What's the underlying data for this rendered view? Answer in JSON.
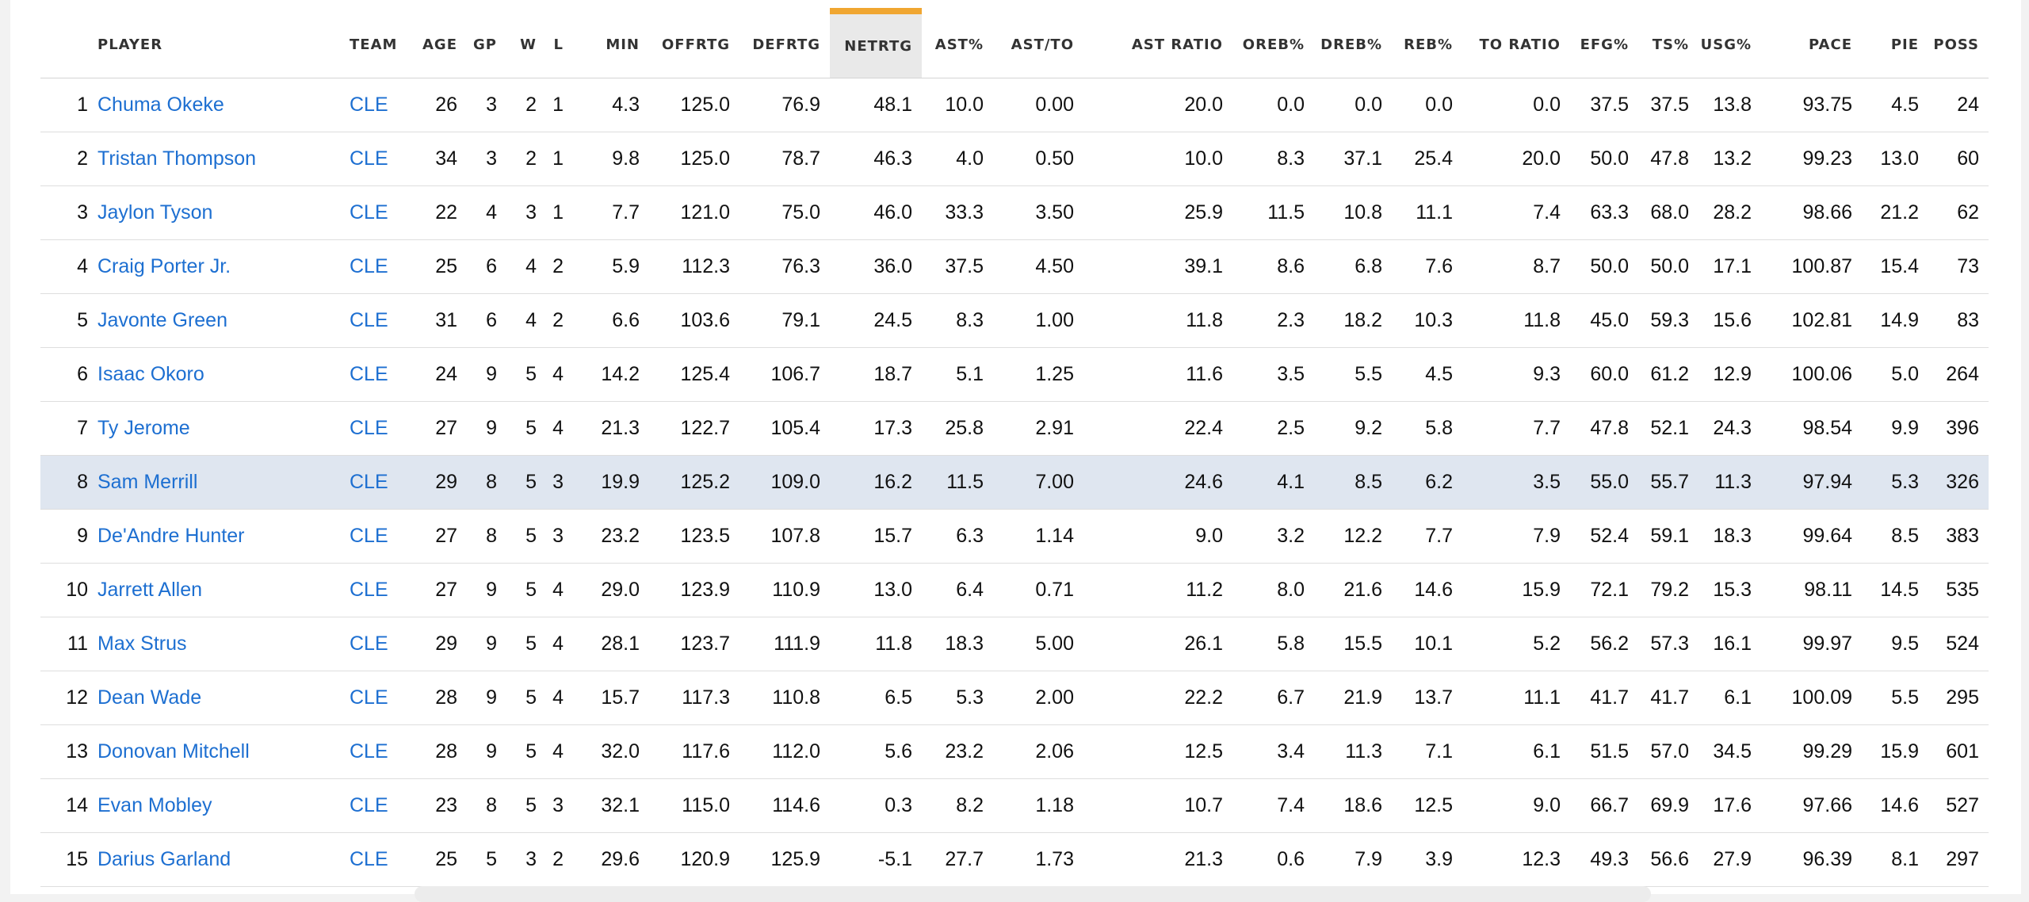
{
  "columns": [
    {
      "key": "rank",
      "label": ""
    },
    {
      "key": "player",
      "label": "PLAYER"
    },
    {
      "key": "team",
      "label": "TEAM"
    },
    {
      "key": "age",
      "label": "AGE"
    },
    {
      "key": "gp",
      "label": "GP"
    },
    {
      "key": "w",
      "label": "W"
    },
    {
      "key": "l",
      "label": "L"
    },
    {
      "key": "min",
      "label": "MIN"
    },
    {
      "key": "offrtg",
      "label": "OFFRTG"
    },
    {
      "key": "defrtg",
      "label": "DEFRTG"
    },
    {
      "key": "netrtg",
      "label": "NETRTG"
    },
    {
      "key": "astpct",
      "label": "AST%"
    },
    {
      "key": "astto",
      "label": "AST/TO"
    },
    {
      "key": "astratio",
      "label": "AST RATIO"
    },
    {
      "key": "orebpct",
      "label": "OREB%"
    },
    {
      "key": "drebpct",
      "label": "DREB%"
    },
    {
      "key": "rebpct",
      "label": "REB%"
    },
    {
      "key": "toratio",
      "label": "TO RATIO"
    },
    {
      "key": "efgpct",
      "label": "EFG%"
    },
    {
      "key": "tspct",
      "label": "TS%"
    },
    {
      "key": "usgpct",
      "label": "USG%"
    },
    {
      "key": "pace",
      "label": "PACE"
    },
    {
      "key": "pie",
      "label": "PIE"
    },
    {
      "key": "poss",
      "label": "POSS"
    }
  ],
  "sorted_column": "netrtg",
  "highlighted_row": 8,
  "colors": {
    "link": "#1d6fd1",
    "sort_indicator": "#f0a631",
    "highlight_row": "#dfe6f0"
  },
  "rows": [
    [
      "1",
      "Chuma Okeke",
      "CLE",
      "26",
      "3",
      "2",
      "1",
      "4.3",
      "125.0",
      "76.9",
      "48.1",
      "10.0",
      "0.00",
      "20.0",
      "0.0",
      "0.0",
      "0.0",
      "0.0",
      "37.5",
      "37.5",
      "13.8",
      "93.75",
      "4.5",
      "24"
    ],
    [
      "2",
      "Tristan Thompson",
      "CLE",
      "34",
      "3",
      "2",
      "1",
      "9.8",
      "125.0",
      "78.7",
      "46.3",
      "4.0",
      "0.50",
      "10.0",
      "8.3",
      "37.1",
      "25.4",
      "20.0",
      "50.0",
      "47.8",
      "13.2",
      "99.23",
      "13.0",
      "60"
    ],
    [
      "3",
      "Jaylon Tyson",
      "CLE",
      "22",
      "4",
      "3",
      "1",
      "7.7",
      "121.0",
      "75.0",
      "46.0",
      "33.3",
      "3.50",
      "25.9",
      "11.5",
      "10.8",
      "11.1",
      "7.4",
      "63.3",
      "68.0",
      "28.2",
      "98.66",
      "21.2",
      "62"
    ],
    [
      "4",
      "Craig Porter Jr.",
      "CLE",
      "25",
      "6",
      "4",
      "2",
      "5.9",
      "112.3",
      "76.3",
      "36.0",
      "37.5",
      "4.50",
      "39.1",
      "8.6",
      "6.8",
      "7.6",
      "8.7",
      "50.0",
      "50.0",
      "17.1",
      "100.87",
      "15.4",
      "73"
    ],
    [
      "5",
      "Javonte Green",
      "CLE",
      "31",
      "6",
      "4",
      "2",
      "6.6",
      "103.6",
      "79.1",
      "24.5",
      "8.3",
      "1.00",
      "11.8",
      "2.3",
      "18.2",
      "10.3",
      "11.8",
      "45.0",
      "59.3",
      "15.6",
      "102.81",
      "14.9",
      "83"
    ],
    [
      "6",
      "Isaac Okoro",
      "CLE",
      "24",
      "9",
      "5",
      "4",
      "14.2",
      "125.4",
      "106.7",
      "18.7",
      "5.1",
      "1.25",
      "11.6",
      "3.5",
      "5.5",
      "4.5",
      "9.3",
      "60.0",
      "61.2",
      "12.9",
      "100.06",
      "5.0",
      "264"
    ],
    [
      "7",
      "Ty Jerome",
      "CLE",
      "27",
      "9",
      "5",
      "4",
      "21.3",
      "122.7",
      "105.4",
      "17.3",
      "25.8",
      "2.91",
      "22.4",
      "2.5",
      "9.2",
      "5.8",
      "7.7",
      "47.8",
      "52.1",
      "24.3",
      "98.54",
      "9.9",
      "396"
    ],
    [
      "8",
      "Sam Merrill",
      "CLE",
      "29",
      "8",
      "5",
      "3",
      "19.9",
      "125.2",
      "109.0",
      "16.2",
      "11.5",
      "7.00",
      "24.6",
      "4.1",
      "8.5",
      "6.2",
      "3.5",
      "55.0",
      "55.7",
      "11.3",
      "97.94",
      "5.3",
      "326"
    ],
    [
      "9",
      "De'Andre Hunter",
      "CLE",
      "27",
      "8",
      "5",
      "3",
      "23.2",
      "123.5",
      "107.8",
      "15.7",
      "6.3",
      "1.14",
      "9.0",
      "3.2",
      "12.2",
      "7.7",
      "7.9",
      "52.4",
      "59.1",
      "18.3",
      "99.64",
      "8.5",
      "383"
    ],
    [
      "10",
      "Jarrett Allen",
      "CLE",
      "27",
      "9",
      "5",
      "4",
      "29.0",
      "123.9",
      "110.9",
      "13.0",
      "6.4",
      "0.71",
      "11.2",
      "8.0",
      "21.6",
      "14.6",
      "15.9",
      "72.1",
      "79.2",
      "15.3",
      "98.11",
      "14.5",
      "535"
    ],
    [
      "11",
      "Max Strus",
      "CLE",
      "29",
      "9",
      "5",
      "4",
      "28.1",
      "123.7",
      "111.9",
      "11.8",
      "18.3",
      "5.00",
      "26.1",
      "5.8",
      "15.5",
      "10.1",
      "5.2",
      "56.2",
      "57.3",
      "16.1",
      "99.97",
      "9.5",
      "524"
    ],
    [
      "12",
      "Dean Wade",
      "CLE",
      "28",
      "9",
      "5",
      "4",
      "15.7",
      "117.3",
      "110.8",
      "6.5",
      "5.3",
      "2.00",
      "22.2",
      "6.7",
      "21.9",
      "13.7",
      "11.1",
      "41.7",
      "41.7",
      "6.1",
      "100.09",
      "5.5",
      "295"
    ],
    [
      "13",
      "Donovan Mitchell",
      "CLE",
      "28",
      "9",
      "5",
      "4",
      "32.0",
      "117.6",
      "112.0",
      "5.6",
      "23.2",
      "2.06",
      "12.5",
      "3.4",
      "11.3",
      "7.1",
      "6.1",
      "51.5",
      "57.0",
      "34.5",
      "99.29",
      "15.9",
      "601"
    ],
    [
      "14",
      "Evan Mobley",
      "CLE",
      "23",
      "8",
      "5",
      "3",
      "32.1",
      "115.0",
      "114.6",
      "0.3",
      "8.2",
      "1.18",
      "10.7",
      "7.4",
      "18.6",
      "12.5",
      "9.0",
      "66.7",
      "69.9",
      "17.6",
      "97.66",
      "14.6",
      "527"
    ],
    [
      "15",
      "Darius Garland",
      "CLE",
      "25",
      "5",
      "3",
      "2",
      "29.6",
      "120.9",
      "125.9",
      "-5.1",
      "27.7",
      "1.73",
      "21.3",
      "0.6",
      "7.9",
      "3.9",
      "12.3",
      "49.3",
      "56.6",
      "27.9",
      "96.39",
      "8.1",
      "297"
    ]
  ]
}
